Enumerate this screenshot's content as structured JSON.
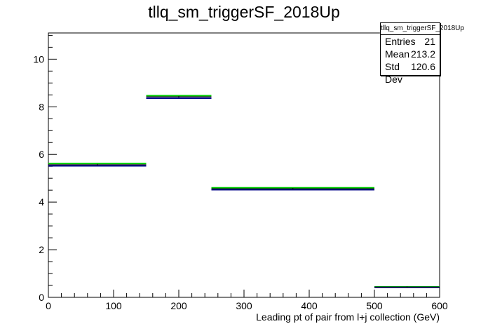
{
  "title": "tllq_sm_triggerSF_2018Up",
  "stats": {
    "name": "tllq_sm_triggerSF_2018Up",
    "rows": [
      {
        "label": "Entries",
        "value": "21"
      },
      {
        "label": "Mean",
        "value": "213.2"
      },
      {
        "label": "Std Dev",
        "value": "120.6"
      }
    ]
  },
  "chart_data": {
    "type": "histogram",
    "title": "tllq_sm_triggerSF_2018Up",
    "xlabel": "Leading pt of pair from l+j collection (GeV)",
    "ylabel": "",
    "xlim": [
      0,
      600
    ],
    "ylim": [
      0,
      11.1
    ],
    "x_ticks": [
      0,
      100,
      200,
      300,
      400,
      500,
      600
    ],
    "y_ticks": [
      0,
      2,
      4,
      6,
      8,
      10
    ],
    "bins": [
      {
        "x0": 0,
        "x1": 150
      },
      {
        "x0": 150,
        "x1": 250
      },
      {
        "x0": 250,
        "x1": 500
      },
      {
        "x0": 500,
        "x1": 600
      }
    ],
    "series": [
      {
        "color": "#00cc00",
        "values": [
          5.62,
          8.47,
          4.6,
          0.44
        ]
      },
      {
        "color": "#00008b",
        "values": [
          5.52,
          8.36,
          4.52,
          0.42
        ]
      },
      {
        "color": "#000000",
        "values": [
          5.57,
          8.42,
          4.56,
          0.43
        ]
      }
    ],
    "grid": false,
    "legend": "none"
  }
}
